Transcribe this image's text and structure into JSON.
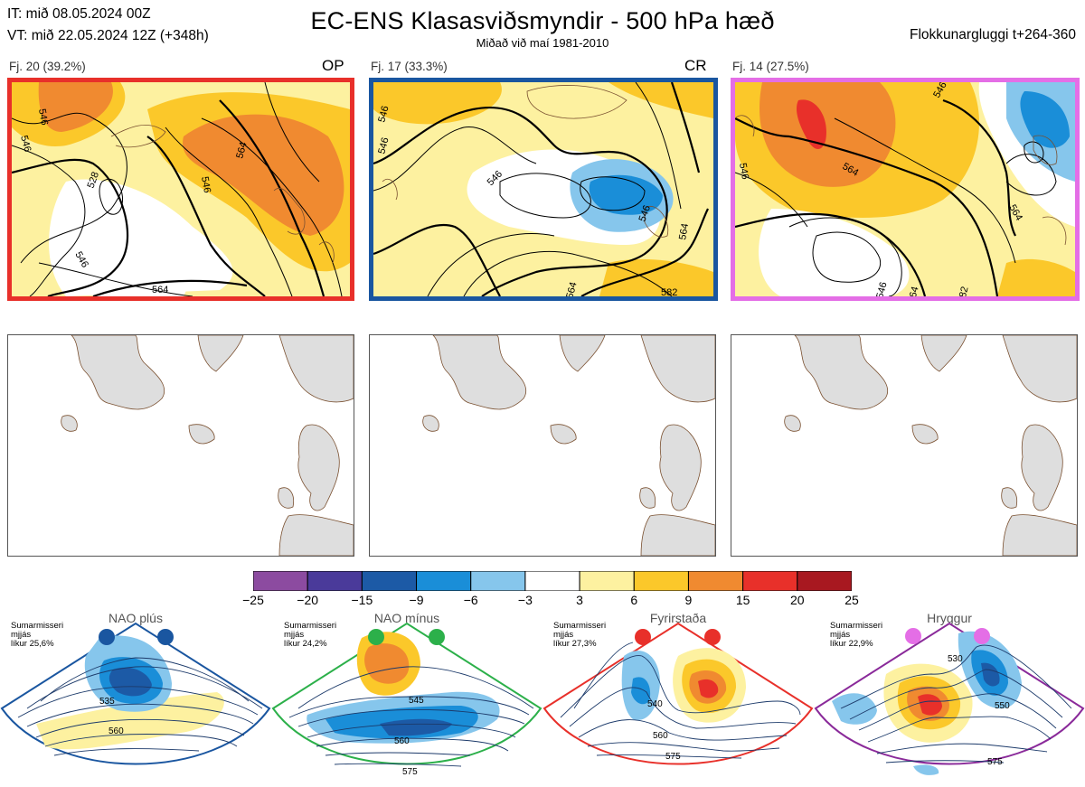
{
  "header": {
    "it_line": "IT: mið 08.05.2024 00Z",
    "vt_line": "VT: mið 22.05.2024 12Z  (+348h)",
    "title": "EC-ENS Klasasviðsmyndir - 500 hPa hæð",
    "subtitle": "Miðað við maí 1981-2010",
    "window": "Flokkunargluggi t+264-360"
  },
  "panels": [
    {
      "label": "Fj. 20 (39.2%)",
      "tag": "OP",
      "border": "#e8302a",
      "contours": [
        "546",
        "546",
        "528",
        "546",
        "564",
        "564",
        "546"
      ]
    },
    {
      "label": "Fj. 17 (33.3%)",
      "tag": "CR",
      "border": "#1a56a0",
      "contours": [
        "546",
        "546",
        "546",
        "564",
        "546",
        "564",
        "582"
      ]
    },
    {
      "label": "Fj. 14 (27.5%)",
      "tag": "",
      "border": "#e46ee6",
      "contours": [
        "546",
        "564",
        "546",
        "564",
        "564",
        "546",
        "582"
      ]
    }
  ],
  "colorbar": {
    "ticks": [
      "−25",
      "−20",
      "−15",
      "−9",
      "−6",
      "−3",
      "3",
      "6",
      "9",
      "15",
      "20",
      "25"
    ],
    "colors": [
      "#8c4ba0",
      "#4a3a9a",
      "#1c5aa6",
      "#1a8ed8",
      "#86c6ec",
      "#ffffff",
      "#fdf1a0",
      "#fbc82a",
      "#f08a30",
      "#e8302a",
      "#a81820"
    ]
  },
  "regimes": [
    {
      "title": "NAO plús",
      "note": [
        "Sumarmisseri",
        "mjjás",
        "líkur 25,6%"
      ],
      "dot_color": "#1a56a0",
      "border": "#1a56a0",
      "labels": [
        "535",
        "560"
      ]
    },
    {
      "title": "NAO mínus",
      "note": [
        "Sumarmisseri",
        "mjjás",
        "líkur 24,2%"
      ],
      "dot_color": "#2cb04a",
      "border": "#2cb04a",
      "labels": [
        "545",
        "560",
        "575"
      ]
    },
    {
      "title": "Fyrirstaða",
      "note": [
        "Sumarmisseri",
        "mjjás",
        "líkur 27,3%"
      ],
      "dot_color": "#e8302a",
      "border": "#e8302a",
      "labels": [
        "540",
        "560",
        "575"
      ]
    },
    {
      "title": "Hryggur",
      "note": [
        "Sumarmisseri",
        "mjjás",
        "líkur 22,9%"
      ],
      "dot_color": "#e46ee6",
      "border": "#8a2a9a",
      "labels": [
        "530",
        "550",
        "575"
      ]
    }
  ]
}
